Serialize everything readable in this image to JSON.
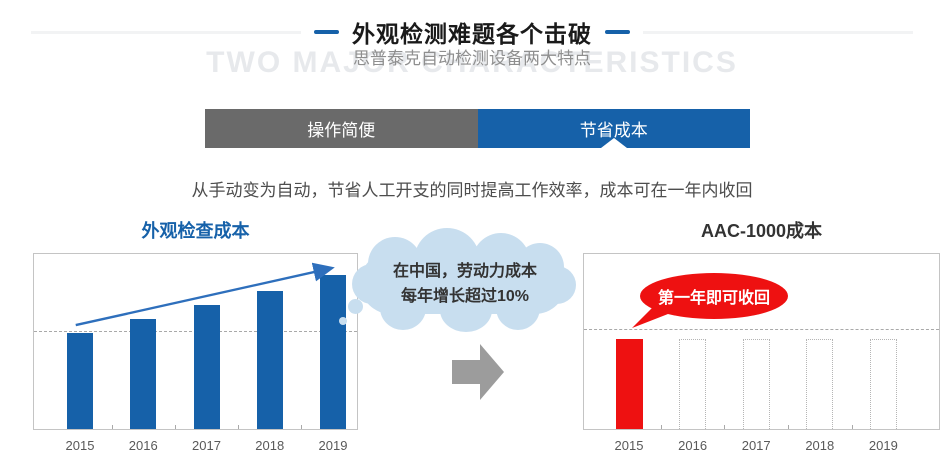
{
  "header": {
    "title": "外观检测难题各个击破",
    "subtitle": "思普泰克自动检测设备两大特点",
    "watermark": "TWO MAJOR CHARACTERISTICS",
    "accent_color": "#1661A9"
  },
  "tabs": [
    {
      "label": "操作简便",
      "active": false,
      "bg": "#6A6A6A"
    },
    {
      "label": "节省成本",
      "active": true,
      "bg": "#1661A9"
    }
  ],
  "description": "从手动变为自动，节省人工开支的同时提高工作效率，成本可在一年内收回",
  "cloud_callout": {
    "line1": "在中国，劳动力成本",
    "line2": "每年增长超过10%",
    "bg": "#C8DEEF",
    "text_color": "#333333"
  },
  "speech_callout": {
    "text": "第一年即可收回",
    "bg": "#EE1111",
    "text_color": "#FFFFFF"
  },
  "transition_arrow_color": "#9C9C9C",
  "chart_data": [
    {
      "type": "bar",
      "title": "外观检查成本",
      "title_color": "#1661A9",
      "categories": [
        "2015",
        "2016",
        "2017",
        "2018",
        "2019"
      ],
      "values": [
        55,
        63,
        71,
        79,
        88
      ],
      "value_note": "y-axis unlabeled; values are relative cost (% of plot height), ~10%+ yearly growth",
      "bar_color": "#1661A9",
      "baseline_percent": 55.5,
      "trend_arrow_color": "#2E6FBC",
      "xlabel": "",
      "ylabel": "",
      "grid": "single dashed horizontal line at 2015 level",
      "legend": "none",
      "annotations": [
        "blue upward trend arrow from 2015 bar top to 2019 bar top"
      ]
    },
    {
      "type": "bar",
      "title": "AAC-1000成本",
      "title_color": "#333333",
      "categories": [
        "2015",
        "2016",
        "2017",
        "2018",
        "2019"
      ],
      "series": [
        {
          "name": "solid-red-first-year",
          "style": "solid",
          "color": "#EE1111",
          "values": [
            51.5,
            null,
            null,
            null,
            null
          ]
        },
        {
          "name": "dotted-outline-placeholder",
          "style": "dotted-outline",
          "color": "#B5B5B5",
          "values": [
            null,
            51.5,
            51.5,
            51.5,
            51.5
          ]
        }
      ],
      "value_note": "y-axis unlabeled; cost only in first year (2015), later years empty dotted outlines",
      "baseline_percent": 56.5,
      "xlabel": "",
      "ylabel": "",
      "grid": "single dashed horizontal line just above bar tops",
      "legend": "none"
    }
  ]
}
